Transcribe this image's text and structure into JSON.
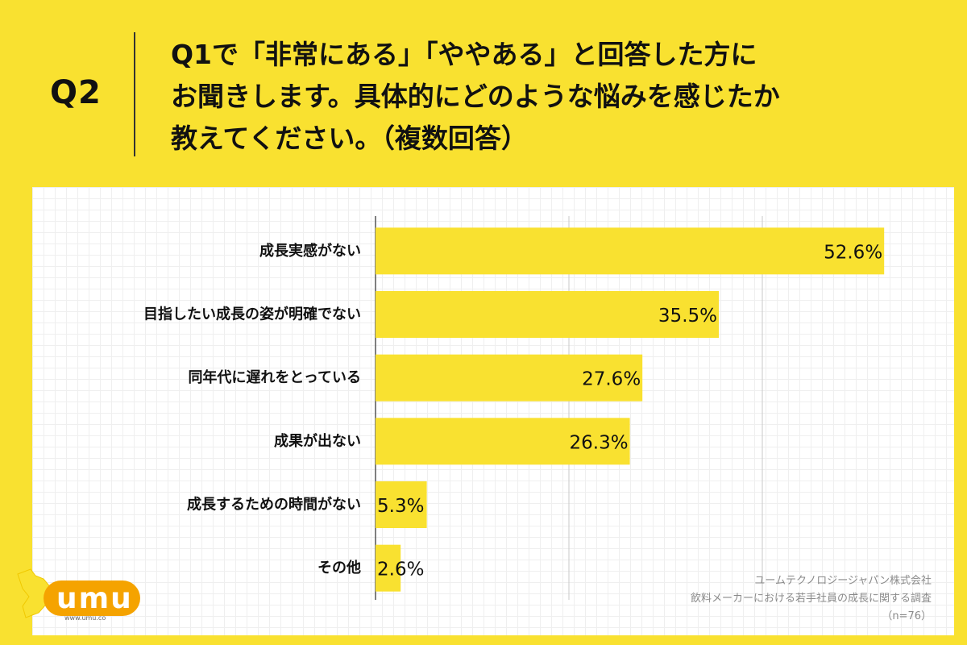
{
  "question": {
    "label": "Q2",
    "lines": [
      "Q1で「非常にある」「ややある」と回答した方に",
      "お聞きします。具体的にどのような悩みを感じたか",
      "教えてください。（複数回答）"
    ]
  },
  "chart_data": {
    "type": "bar",
    "orientation": "horizontal",
    "categories": [
      "成長実感がない",
      "目指したい成長の姿が明確でない",
      "同年代に遅れをとっている",
      "成果が出ない",
      "成長するための時間がない",
      "その他"
    ],
    "values": [
      52.6,
      35.5,
      27.6,
      26.3,
      5.3,
      2.6
    ],
    "value_labels": [
      "52.6%",
      "35.5%",
      "27.6%",
      "26.3%",
      "5.3%",
      "2.6%"
    ],
    "xlim": [
      0,
      60
    ],
    "grid": true,
    "bar_color": "#F9E130"
  },
  "logo": {
    "text": "umu",
    "url": "www.umu.co"
  },
  "source": {
    "lines": [
      "ユームテクノロジージャパン株式会社",
      "飲料メーカーにおける若手社員の成長に関する調査",
      "（n=76）"
    ]
  },
  "colors": {
    "background": "#F9E130",
    "accent": "#F9E130",
    "panel": "#ffffff"
  }
}
